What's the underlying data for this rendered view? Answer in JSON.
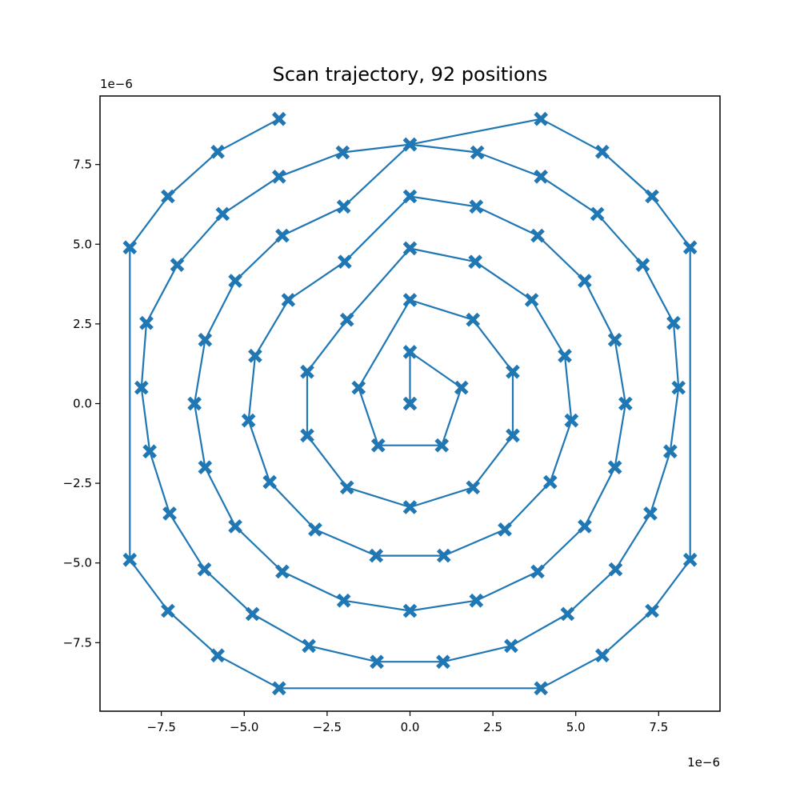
{
  "chart_data": {
    "type": "line",
    "title": "Scan trajectory, 92 positions",
    "xlabel": "",
    "ylabel": "",
    "x_offset_text": "1e−6",
    "y_offset_text": "1e−6",
    "xlim": [
      -9.35,
      9.35
    ],
    "ylim": [
      -9.65,
      9.65
    ],
    "xticks": [
      -7.5,
      -5.0,
      -2.5,
      0.0,
      2.5,
      5.0,
      7.5
    ],
    "yticks": [
      -7.5,
      -5.0,
      -2.5,
      0.0,
      2.5,
      5.0,
      7.5
    ],
    "xtick_labels": [
      "−7.5",
      "−5.0",
      "−2.5",
      "0.0",
      "2.5",
      "5.0",
      "7.5"
    ],
    "ytick_labels": [
      "−7.5",
      "−5.0",
      "−2.5",
      "0.0",
      "2.5",
      "5.0",
      "7.5"
    ],
    "grid": false,
    "series": [
      {
        "color": "#1f77b4",
        "marker": "X",
        "x": [
          0,
          0,
          1.55,
          0.96,
          -0.96,
          -1.55,
          0,
          1.9,
          3.1,
          3.1,
          1.9,
          0,
          -1.9,
          -3.1,
          -3.1,
          -1.9,
          0,
          1.97,
          3.67,
          4.67,
          4.87,
          4.23,
          2.86,
          1.02,
          -1.02,
          -2.86,
          -4.23,
          -4.87,
          -4.67,
          -3.67,
          -1.97,
          0,
          2.0,
          3.85,
          5.27,
          6.18,
          6.5,
          6.18,
          5.27,
          3.85,
          2.0,
          0,
          -2.0,
          -3.85,
          -5.27,
          -6.18,
          -6.5,
          -6.18,
          -5.27,
          -3.85,
          -2.0,
          0,
          2.03,
          3.95,
          5.65,
          7.02,
          7.95,
          8.1,
          7.85,
          7.25,
          6.2,
          4.75,
          3.05,
          1.0,
          -1.0,
          -3.05,
          -4.75,
          -6.2,
          -7.25,
          -7.85,
          -8.1,
          -7.95,
          -7.02,
          -5.65,
          -3.95,
          -2.03,
          0,
          3.95,
          5.8,
          7.3,
          8.45,
          8.45,
          7.3,
          5.8,
          3.95,
          -3.95,
          -5.8,
          -7.3,
          -8.45,
          -8.45,
          -7.3,
          -5.8,
          -3.95
        ],
        "y": [
          0,
          1.62,
          0.5,
          -1.31,
          -1.31,
          0.5,
          3.25,
          2.63,
          1.0,
          -1.0,
          -2.63,
          -3.25,
          -2.63,
          -1.0,
          1.0,
          2.63,
          4.87,
          4.45,
          3.25,
          1.5,
          -0.53,
          -2.46,
          -3.95,
          -4.77,
          -4.77,
          -3.95,
          -2.46,
          -0.53,
          1.5,
          3.25,
          4.45,
          6.5,
          6.18,
          5.27,
          3.85,
          2.0,
          0,
          -2.0,
          -3.85,
          -5.27,
          -6.18,
          -6.5,
          -6.18,
          -5.27,
          -3.85,
          -2.0,
          0,
          2.0,
          3.85,
          5.27,
          6.18,
          8.13,
          7.88,
          7.12,
          5.95,
          4.35,
          2.53,
          0.5,
          -1.5,
          -3.45,
          -5.2,
          -6.6,
          -7.6,
          -8.1,
          -8.1,
          -7.6,
          -6.6,
          -5.2,
          -3.45,
          -1.5,
          0.5,
          2.53,
          4.35,
          5.95,
          7.12,
          7.88,
          8.13,
          8.93,
          7.9,
          6.5,
          4.9,
          -4.9,
          -6.5,
          -7.9,
          -8.93,
          -8.93,
          -7.9,
          -6.5,
          -4.9,
          4.9,
          6.5,
          7.9,
          8.93
        ]
      }
    ]
  }
}
